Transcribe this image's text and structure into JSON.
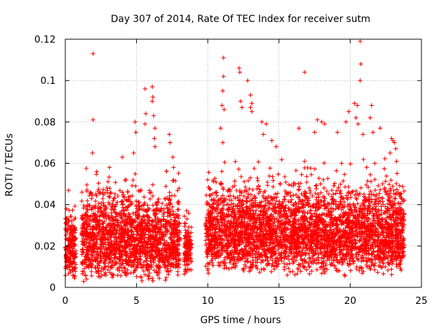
{
  "chart_data": {
    "type": "scatter",
    "title": "Day 307 of 2014, Rate Of TEC Index for receiver sutm",
    "xlabel": "GPS time / hours",
    "ylabel": "ROTI / TECUs",
    "xlim": [
      0,
      25
    ],
    "ylim": [
      0,
      0.12
    ],
    "xticks": [
      0,
      5,
      10,
      15,
      20,
      25
    ],
    "xtick_labels": [
      "0",
      "5",
      "10",
      "15",
      "20",
      "25"
    ],
    "yticks": [
      0,
      0.02,
      0.04,
      0.06,
      0.08,
      0.1,
      0.12
    ],
    "ytick_labels": [
      "0",
      "0.02",
      "0.04",
      "0.06",
      "0.08",
      "0.1",
      "0.12"
    ],
    "grid": true,
    "marker": "+",
    "color": "#ff0000",
    "data_gaps_hours": [
      [
        0.8,
        1.1
      ],
      [
        8.1,
        8.3
      ],
      [
        8.9,
        9.8
      ]
    ],
    "segments": [
      {
        "x_range": [
          0.0,
          0.75
        ],
        "y_range": [
          0.003,
          0.055
        ]
      },
      {
        "x_range": [
          1.15,
          8.05
        ],
        "y_range": [
          0.002,
          0.066
        ]
      },
      {
        "x_range": [
          8.35,
          8.85
        ],
        "y_range": [
          0.004,
          0.047
        ]
      },
      {
        "x_range": [
          9.85,
          23.8
        ],
        "y_range": [
          0.005,
          0.07
        ]
      }
    ],
    "outliers": [
      {
        "x": 1.95,
        "y": 0.113
      },
      {
        "x": 1.95,
        "y": 0.081
      },
      {
        "x": 1.9,
        "y": 0.065
      },
      {
        "x": 3.1,
        "y": 0.058
      },
      {
        "x": 4.0,
        "y": 0.063
      },
      {
        "x": 4.8,
        "y": 0.065
      },
      {
        "x": 4.9,
        "y": 0.08
      },
      {
        "x": 4.95,
        "y": 0.075
      },
      {
        "x": 5.6,
        "y": 0.096
      },
      {
        "x": 5.65,
        "y": 0.084
      },
      {
        "x": 5.6,
        "y": 0.079
      },
      {
        "x": 6.1,
        "y": 0.097
      },
      {
        "x": 6.15,
        "y": 0.092
      },
      {
        "x": 6.1,
        "y": 0.09
      },
      {
        "x": 6.2,
        "y": 0.083
      },
      {
        "x": 6.3,
        "y": 0.077
      },
      {
        "x": 6.25,
        "y": 0.072
      },
      {
        "x": 6.3,
        "y": 0.068
      },
      {
        "x": 7.3,
        "y": 0.074
      },
      {
        "x": 7.35,
        "y": 0.07
      },
      {
        "x": 7.55,
        "y": 0.063
      },
      {
        "x": 7.6,
        "y": 0.058
      },
      {
        "x": 11.1,
        "y": 0.111
      },
      {
        "x": 11.1,
        "y": 0.102
      },
      {
        "x": 11.05,
        "y": 0.095
      },
      {
        "x": 11.0,
        "y": 0.088
      },
      {
        "x": 11.15,
        "y": 0.086
      },
      {
        "x": 10.9,
        "y": 0.077
      },
      {
        "x": 11.05,
        "y": 0.07
      },
      {
        "x": 12.2,
        "y": 0.106
      },
      {
        "x": 12.25,
        "y": 0.104
      },
      {
        "x": 12.3,
        "y": 0.09
      },
      {
        "x": 12.4,
        "y": 0.087
      },
      {
        "x": 12.8,
        "y": 0.1
      },
      {
        "x": 13.0,
        "y": 0.093
      },
      {
        "x": 13.1,
        "y": 0.089
      },
      {
        "x": 13.0,
        "y": 0.087
      },
      {
        "x": 13.1,
        "y": 0.085
      },
      {
        "x": 13.8,
        "y": 0.08
      },
      {
        "x": 14.1,
        "y": 0.079
      },
      {
        "x": 13.9,
        "y": 0.074
      },
      {
        "x": 14.5,
        "y": 0.071
      },
      {
        "x": 14.8,
        "y": 0.068
      },
      {
        "x": 16.4,
        "y": 0.077
      },
      {
        "x": 16.8,
        "y": 0.104
      },
      {
        "x": 17.5,
        "y": 0.075
      },
      {
        "x": 17.7,
        "y": 0.081
      },
      {
        "x": 18.0,
        "y": 0.08
      },
      {
        "x": 18.2,
        "y": 0.079
      },
      {
        "x": 19.1,
        "y": 0.075
      },
      {
        "x": 19.7,
        "y": 0.08
      },
      {
        "x": 19.9,
        "y": 0.085
      },
      {
        "x": 20.3,
        "y": 0.089
      },
      {
        "x": 20.5,
        "y": 0.088
      },
      {
        "x": 20.4,
        "y": 0.082
      },
      {
        "x": 20.55,
        "y": 0.079
      },
      {
        "x": 20.7,
        "y": 0.119
      },
      {
        "x": 20.75,
        "y": 0.108
      },
      {
        "x": 20.7,
        "y": 0.1
      },
      {
        "x": 20.9,
        "y": 0.074
      },
      {
        "x": 21.5,
        "y": 0.088
      },
      {
        "x": 21.4,
        "y": 0.082
      },
      {
        "x": 21.6,
        "y": 0.075
      },
      {
        "x": 22.1,
        "y": 0.077
      },
      {
        "x": 22.9,
        "y": 0.072
      },
      {
        "x": 23.0,
        "y": 0.071
      },
      {
        "x": 23.1,
        "y": 0.07
      },
      {
        "x": 23.2,
        "y": 0.067
      },
      {
        "x": 22.8,
        "y": 0.065
      }
    ]
  }
}
